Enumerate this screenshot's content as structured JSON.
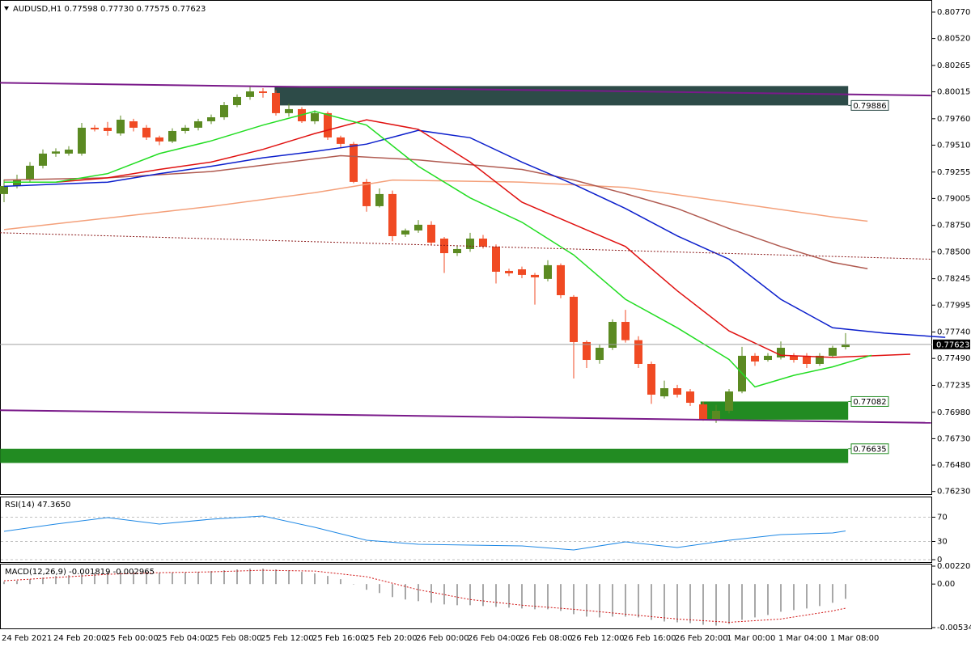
{
  "chart_data": [
    {
      "type": "candlestick",
      "title": "AUDUSD,H1 0.77598 0.77730 0.77575 0.77623",
      "categories": [
        "24 Feb 2021",
        null,
        null,
        null,
        "24 Feb 20:00",
        null,
        null,
        null,
        "25 Feb 00:00",
        null,
        null,
        null,
        "25 Feb 04:00",
        null,
        null,
        null,
        "25 Feb 08:00",
        null,
        null,
        null,
        "25 Feb 12:00",
        null,
        null,
        null,
        "25 Feb 16:00",
        null,
        null,
        null,
        "25 Feb 20:00",
        null,
        null,
        null,
        "26 Feb 00:00",
        null,
        null,
        null,
        "26 Feb 04:00",
        null,
        null,
        null,
        "26 Feb 08:00",
        null,
        null,
        null,
        "26 Feb 12:00",
        null,
        null,
        null,
        "26 Feb 16:00",
        null,
        null,
        null,
        "26 Feb 20:00",
        null,
        null,
        null,
        "1 Mar 00:00",
        null,
        null,
        null,
        "1 Mar 04:00",
        null,
        null,
        null,
        "1 Mar 08:00",
        null
      ],
      "open": [
        0.79047,
        0.79123,
        0.79185,
        0.79315,
        0.7943,
        0.7943,
        0.7943,
        0.79675,
        0.79675,
        0.79621,
        0.79736,
        0.79675,
        0.79583,
        0.79545,
        0.79644,
        0.79675,
        0.79736,
        0.79774,
        0.79889,
        0.79966,
        0.80019,
        0.80004,
        0.79813,
        0.79851,
        0.79736,
        0.79813,
        0.79583,
        0.79522,
        0.79162,
        0.78932,
        0.79047,
        0.78664,
        0.78702,
        0.78756,
        0.78625,
        0.78487,
        0.78526,
        0.78625,
        0.78549,
        0.78319,
        0.78334,
        0.78281,
        0.78243,
        0.78373,
        0.78074,
        0.77645,
        0.77476,
        0.77591,
        0.77836,
        0.77663,
        0.77438,
        0.77131,
        0.77208,
        0.77177,
        0.77055,
        0.76917,
        0.76994,
        0.77177,
        0.77515,
        0.77476,
        0.77499,
        0.77515,
        0.77515,
        0.77438,
        0.77515,
        0.77598
      ],
      "high": [
        0.79185,
        0.7923,
        0.7935,
        0.7947,
        0.7948,
        0.795,
        0.7972,
        0.797,
        0.7973,
        0.7979,
        0.7976,
        0.797,
        0.796,
        0.7967,
        0.797,
        0.7976,
        0.798,
        0.7992,
        0.7999,
        0.8006,
        0.8005,
        0.8003,
        0.799,
        0.7987,
        0.7984,
        0.7983,
        0.796,
        0.7954,
        0.7919,
        0.791,
        0.7908,
        0.7872,
        0.788,
        0.7879,
        0.7864,
        0.7856,
        0.7868,
        0.7866,
        0.7857,
        0.7834,
        0.7836,
        0.783,
        0.7842,
        0.7839,
        0.7809,
        0.7766,
        0.7762,
        0.7786,
        0.7795,
        0.777,
        0.7746,
        0.7728,
        0.7724,
        0.772,
        0.7708,
        0.7705,
        0.772,
        0.776,
        0.7754,
        0.7754,
        0.7765,
        0.7754,
        0.7754,
        0.7754,
        0.7761,
        0.7773
      ],
      "low": [
        0.7897,
        0.791,
        0.7916,
        0.7929,
        0.794,
        0.7941,
        0.7941,
        0.7964,
        0.796,
        0.796,
        0.7964,
        0.7956,
        0.7951,
        0.7953,
        0.7962,
        0.7965,
        0.7971,
        0.7975,
        0.7987,
        0.7994,
        0.7996,
        0.7979,
        0.7978,
        0.7972,
        0.7971,
        0.7956,
        0.7948,
        0.7915,
        0.7888,
        0.7892,
        0.786,
        0.7864,
        0.7868,
        0.7856,
        0.783,
        0.7846,
        0.785,
        0.7853,
        0.782,
        0.7827,
        0.7825,
        0.78,
        0.7822,
        0.7806,
        0.773,
        0.774,
        0.7744,
        0.7757,
        0.7764,
        0.774,
        0.7706,
        0.7711,
        0.7712,
        0.7704,
        0.769,
        0.7688,
        0.7697,
        0.7716,
        0.7742,
        0.7746,
        0.7748,
        0.7745,
        0.774,
        0.7742,
        0.775,
        0.77575
      ],
      "close": [
        0.79123,
        0.79185,
        0.79315,
        0.7943,
        0.7945,
        0.79468,
        0.79675,
        0.79659,
        0.79644,
        0.79751,
        0.79675,
        0.79583,
        0.79545,
        0.79644,
        0.79675,
        0.79736,
        0.79774,
        0.79889,
        0.79966,
        0.80019,
        0.80004,
        0.79813,
        0.79851,
        0.79736,
        0.79813,
        0.79583,
        0.79522,
        0.79162,
        0.78932,
        0.79047,
        0.78648,
        0.78702,
        0.78756,
        0.78587,
        0.78487,
        0.78526,
        0.78625,
        0.78549,
        0.78311,
        0.78296,
        0.78281,
        0.78258,
        0.78373,
        0.78089,
        0.77645,
        0.77476,
        0.77591,
        0.77836,
        0.77663,
        0.77438,
        0.77147,
        0.77208,
        0.77147,
        0.7707,
        0.76917,
        0.76994,
        0.77177,
        0.77515,
        0.77461,
        0.77515,
        0.77591,
        0.77476,
        0.77438,
        0.77515,
        0.77591,
        0.77623
      ],
      "up_color": "#5b8a22",
      "down_color": "#f04a23",
      "ylim": [
        0.76197,
        0.80854
      ],
      "yticks": [
        {
          "value": 0.8077,
          "label": "0.80770"
        },
        {
          "value": 0.8052,
          "label": "0.80520"
        },
        0.80265,
        {
          "value": 0.80015,
          "label": "0.80015"
        },
        {
          "value": 0.7976,
          "label": "0.79760"
        },
        {
          "value": 0.7951,
          "label": "0.79510"
        },
        0.79255,
        {
          "value": 0.79005,
          "label": "0.79005"
        },
        {
          "value": 0.7875,
          "label": "0.78750"
        },
        {
          "value": 0.785,
          "label": "0.78500"
        },
        0.78245,
        0.77995,
        {
          "value": 0.7774,
          "label": "0.77740"
        },
        {
          "value": 0.7749,
          "label": "0.77490"
        },
        0.77235,
        {
          "value": 0.7698,
          "label": "0.76980"
        },
        {
          "value": 0.7673,
          "label": "0.76730"
        },
        {
          "value": 0.7648,
          "label": "0.76480"
        },
        {
          "value": 0.7623,
          "label": "0.76230"
        }
      ],
      "grid": false,
      "zones": [
        {
          "from": 0.8007,
          "to": 0.79886,
          "x": [
            20.9,
            65.2
          ],
          "color": "#2d4b48"
        },
        {
          "from": 0.7691,
          "to": 0.77082,
          "x": [
            53.8,
            65.2
          ],
          "color": "#228b22"
        },
        {
          "from": 0.765,
          "to": 0.76635,
          "x": [
            -0.3,
            65.2
          ],
          "color": "#228b22"
        }
      ],
      "overlays": [
        {
          "color": "#f4a07a",
          "x": [
            0,
            8,
            16,
            24,
            30,
            40,
            48,
            56,
            64,
            66.7
          ],
          "values": [
            0.7871,
            0.7882,
            0.7893,
            0.7906,
            0.7918,
            0.7916,
            0.7911,
            0.7897,
            0.7883,
            0.7879
          ]
        },
        {
          "color": "#b05a50",
          "x": [
            0,
            8,
            16,
            26,
            32,
            40,
            44,
            48,
            52,
            56,
            60,
            64,
            66.7
          ],
          "values": [
            0.7918,
            0.792,
            0.7926,
            0.7941,
            0.7937,
            0.7928,
            0.7918,
            0.7905,
            0.7891,
            0.7872,
            0.7855,
            0.784,
            0.7834
          ]
        },
        {
          "color": "#0c1fcc",
          "x": [
            0,
            4,
            8,
            12,
            16,
            20,
            24,
            28,
            32,
            36,
            40,
            44,
            48,
            52,
            56,
            60,
            64,
            68,
            72.7
          ],
          "values": [
            0.7912,
            0.7914,
            0.7916,
            0.7924,
            0.7931,
            0.7939,
            0.7945,
            0.7952,
            0.7965,
            0.7958,
            0.7935,
            0.7914,
            0.7891,
            0.7865,
            0.7843,
            0.7805,
            0.7778,
            0.7773,
            0.7769
          ]
        },
        {
          "color": "#e0100f",
          "x": [
            0,
            4,
            8,
            12,
            16,
            20,
            24,
            28,
            32,
            36,
            40,
            44,
            48,
            52,
            56,
            60,
            64,
            70
          ],
          "values": [
            0.7916,
            0.7916,
            0.792,
            0.7928,
            0.7935,
            0.7947,
            0.7962,
            0.7975,
            0.7966,
            0.7935,
            0.7897,
            0.7876,
            0.7855,
            0.7813,
            0.7775,
            0.7752,
            0.775,
            0.7753
          ]
        },
        {
          "color": "#22dd22",
          "x": [
            0,
            4,
            8,
            12,
            16,
            20,
            24,
            28,
            32,
            36,
            40,
            44,
            48,
            52,
            56,
            58,
            61,
            64,
            67
          ],
          "values": [
            0.7916,
            0.7916,
            0.7924,
            0.7943,
            0.7955,
            0.797,
            0.7983,
            0.797,
            0.7931,
            0.7901,
            0.7878,
            0.7847,
            0.7805,
            0.7778,
            0.7748,
            0.7722,
            0.7733,
            0.7741,
            0.7752
          ]
        }
      ],
      "lines": [
        {
          "color": "#7a1a8a",
          "x": [
            -0.3,
            71.6
          ],
          "values": [
            0.801,
            0.7998
          ]
        },
        {
          "color": "#7a1a8a",
          "x": [
            -0.3,
            71.6
          ],
          "values": [
            0.77,
            0.7688
          ]
        },
        {
          "color": "#8b1a1a",
          "dash": true,
          "x": [
            -0.3,
            71.6
          ],
          "values": [
            0.7868,
            0.7843
          ]
        }
      ]
    },
    {
      "type": "line",
      "title": "RSI(14) 47.3650",
      "color": "#1e88e5",
      "x": [
        0,
        4,
        8,
        12,
        16,
        20,
        24,
        28,
        32,
        36,
        40,
        44,
        48,
        52,
        56,
        60,
        64,
        65
      ],
      "values": [
        46.7,
        58.7,
        69.3,
        58.7,
        66.7,
        72,
        53.3,
        32,
        25.3,
        24,
        22.7,
        16,
        29.3,
        20,
        32,
        41.3,
        44,
        47.365
      ],
      "ylim": [
        0,
        100
      ],
      "yticks": [
        70,
        30,
        0
      ],
      "grid": true
    },
    {
      "type": "macd",
      "title": "MACD(12,26,9) -0.001819 -0.002965",
      "color": "#a8a8a8",
      "values": [
        0.0003,
        0.0004,
        0.0006,
        0.0008,
        0.001,
        0.0011,
        0.0013,
        0.0014,
        0.0015,
        0.0016,
        0.0016,
        0.0015,
        0.0014,
        0.0014,
        0.0014,
        0.0015,
        0.0016,
        0.0017,
        0.0018,
        0.0019,
        0.0019,
        0.0018,
        0.0017,
        0.0015,
        0.0013,
        0.001,
        0.0006,
        0,
        -0.0007,
        -0.0011,
        -0.0016,
        -0.0019,
        -0.0021,
        -0.0023,
        -0.0025,
        -0.0026,
        -0.0026,
        -0.0027,
        -0.0028,
        -0.0029,
        -0.003,
        -0.0031,
        -0.0031,
        -0.0033,
        -0.0037,
        -0.004,
        -0.0041,
        -0.004,
        -0.004,
        -0.0041,
        -0.0044,
        -0.0046,
        -0.0047,
        -0.0048,
        -0.005,
        -0.0051,
        -0.0049,
        -0.0044,
        -0.0041,
        -0.0038,
        -0.0034,
        -0.0032,
        -0.003,
        -0.0027,
        -0.0023,
        -0.001819
      ],
      "signal": {
        "color": "#d01010",
        "x": [
          0,
          4,
          8,
          12,
          16,
          20,
          24,
          28,
          32,
          36,
          40,
          44,
          48,
          52,
          56,
          60,
          64,
          65
        ],
        "values": [
          0.0004,
          0.0008,
          0.0012,
          0.0014,
          0.0015,
          0.0017,
          0.0016,
          0.0009,
          -0.0007,
          -0.0019,
          -0.0026,
          -0.0031,
          -0.0037,
          -0.0043,
          -0.0047,
          -0.0043,
          -0.0033,
          -0.002965
        ]
      },
      "ylim": [
        -0.005349,
        0.002203
      ],
      "yticks": [
        0.002203,
        {
          "value": 0,
          "label": "0.00"
        },
        -0.005349
      ],
      "grid": false
    }
  ]
}
